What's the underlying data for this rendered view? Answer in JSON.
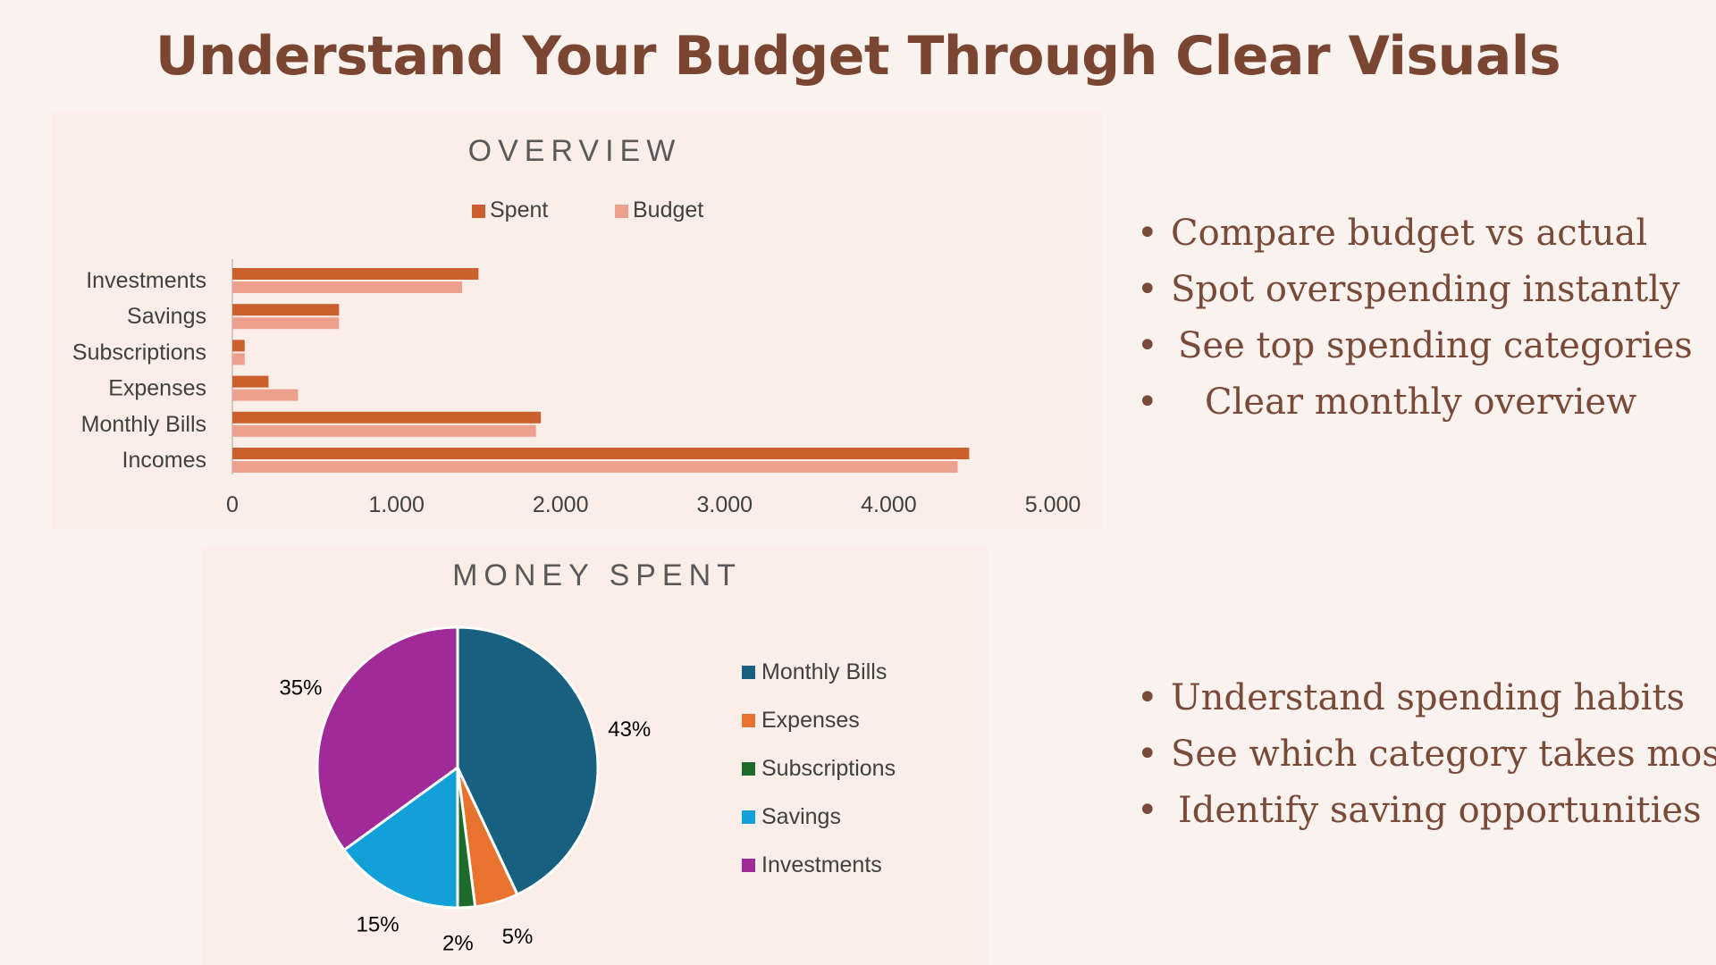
{
  "page": {
    "title": "Understand Your Budget Through Clear Visuals"
  },
  "bullets_top": [
    "Compare budget vs actual",
    "Spot overspending instantly",
    "See top spending categories",
    "Clear monthly overview"
  ],
  "bullets_bottom": [
    "Understand spending habits",
    "See which category takes most",
    "Identify saving opportunities"
  ],
  "colors": {
    "spent": "#c9602e",
    "budget": "#eea08f",
    "monthly_bills": "#17607f",
    "expenses": "#e8732e",
    "subscriptions": "#1c6b2a",
    "savings": "#11a0d8",
    "investments": "#a02a97"
  },
  "chart_data": [
    {
      "type": "bar",
      "orientation": "horizontal",
      "title": "OVERVIEW",
      "categories": [
        "Investments",
        "Savings",
        "Subscriptions",
        "Expenses",
        "Monthly Bills",
        "Incomes"
      ],
      "series": [
        {
          "name": "Spent",
          "values": [
            1500,
            650,
            75,
            220,
            1880,
            4490
          ]
        },
        {
          "name": "Budget",
          "values": [
            1400,
            650,
            75,
            400,
            1850,
            4420
          ]
        }
      ],
      "xlim": [
        0,
        5000
      ],
      "xticks": [
        "0",
        "1.000",
        "2.000",
        "3.000",
        "4.000",
        "5.000"
      ],
      "legend": "top",
      "grid": false
    },
    {
      "type": "pie",
      "title": "MONEY SPENT",
      "categories": [
        "Monthly Bills",
        "Expenses",
        "Subscriptions",
        "Savings",
        "Investments"
      ],
      "values": [
        43,
        5,
        2,
        15,
        35
      ],
      "labels": [
        "43%",
        "5%",
        "2%",
        "15%",
        "35%"
      ],
      "legend": "right"
    }
  ]
}
